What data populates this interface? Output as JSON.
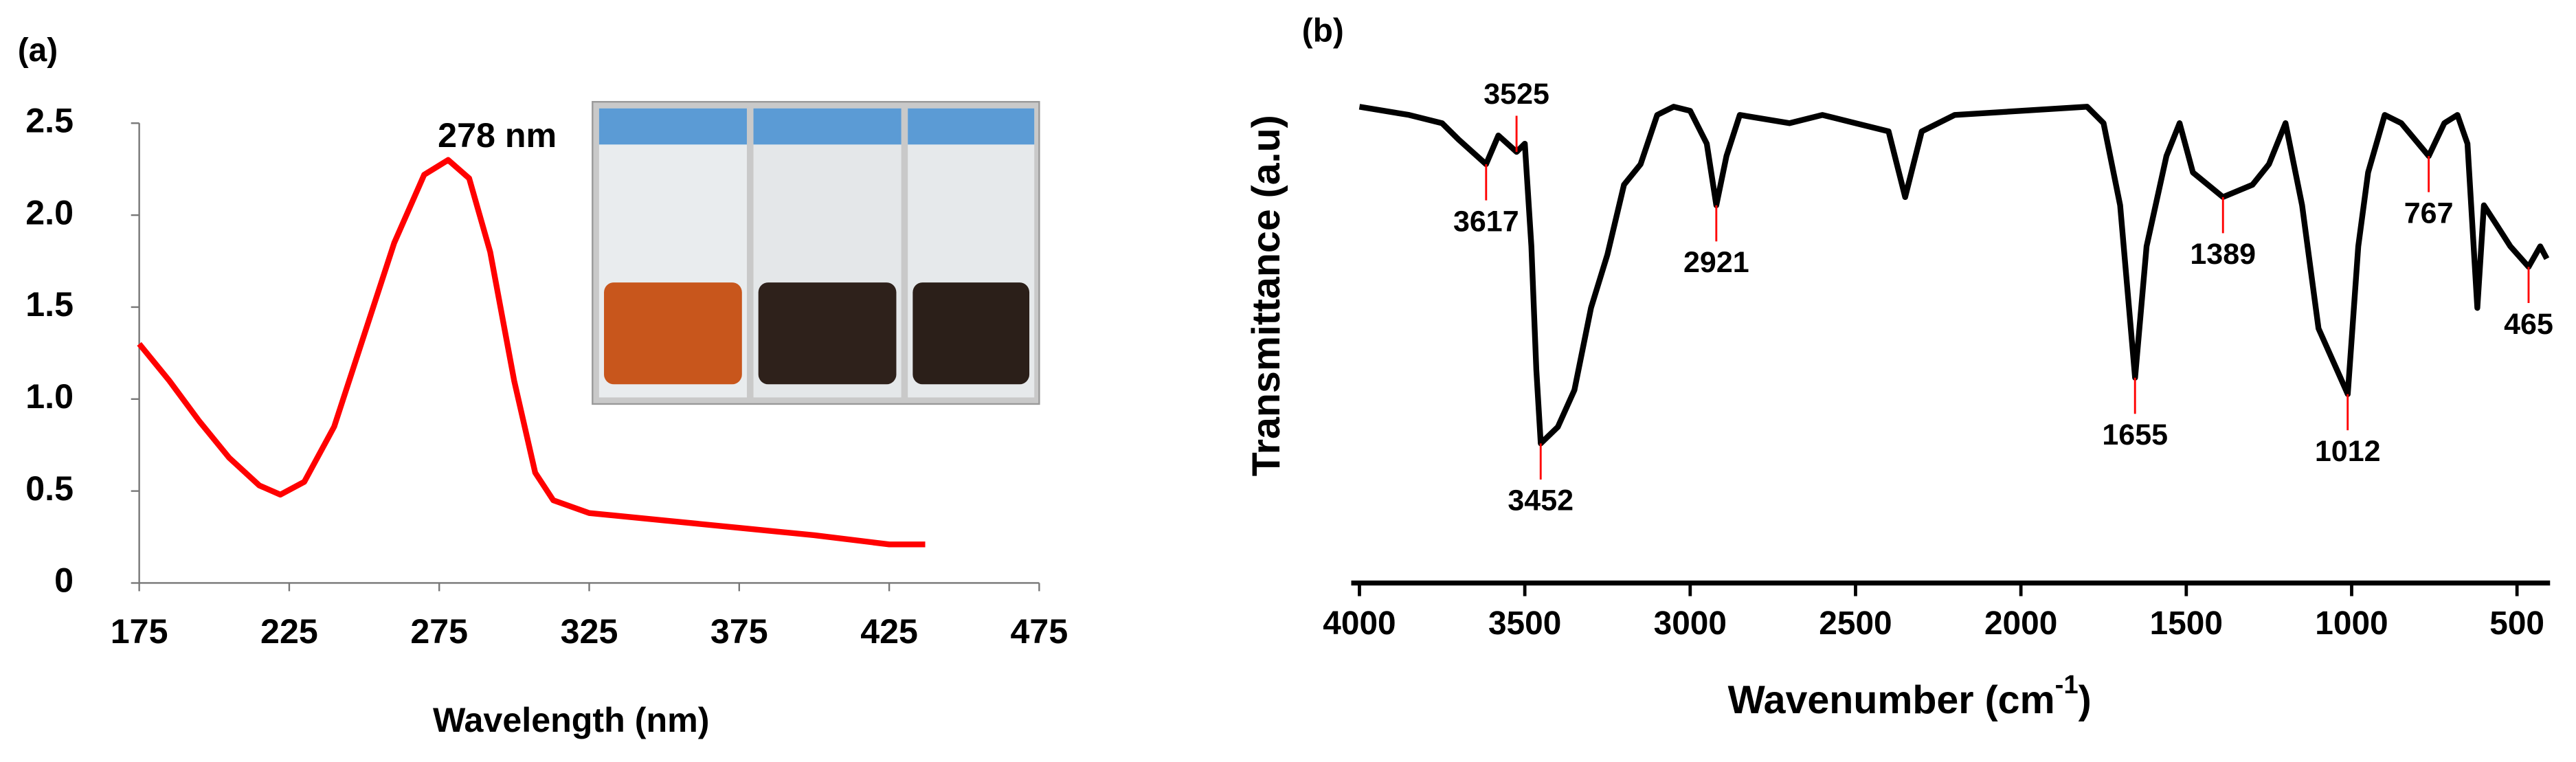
{
  "chart_data": [
    {
      "type": "line",
      "panel": "(a)",
      "xlabel": "Wavelength (nm)",
      "annotation": "278 nm",
      "x": [
        175,
        185,
        195,
        205,
        215,
        222,
        230,
        240,
        250,
        260,
        270,
        278,
        285,
        292,
        300,
        307,
        313,
        325,
        350,
        375,
        400,
        425,
        437
      ],
      "series": [
        {
          "color": "#ff0000",
          "values": [
            1.3,
            1.1,
            0.88,
            0.68,
            0.53,
            0.48,
            0.55,
            0.85,
            1.35,
            1.85,
            2.22,
            2.3,
            2.2,
            1.8,
            1.1,
            0.6,
            0.45,
            0.38,
            0.34,
            0.3,
            0.26,
            0.21,
            0.21
          ]
        }
      ],
      "xlim": [
        175,
        475
      ],
      "xticks": [
        175,
        225,
        275,
        325,
        375,
        425,
        475
      ],
      "ylim": [
        0,
        2.5
      ],
      "yticks": [
        0,
        0.5,
        {
          "value": 1,
          "label": "1.0"
        },
        1.5,
        {
          "value": 2,
          "label": "2.0"
        },
        2.5
      ]
    },
    {
      "type": "line",
      "panel": "(b)",
      "xlabel": "Wavenumber (cm",
      "xlabel_sup": "-1",
      "xlabel_end": ")",
      "ylabel": "Transmittance (a.u)",
      "x": [
        4000,
        3850,
        3750,
        3700,
        3617,
        3580,
        3525,
        3500,
        3480,
        3465,
        3452,
        3400,
        3350,
        3300,
        3250,
        3200,
        3150,
        3100,
        3050,
        3000,
        2950,
        2921,
        2890,
        2850,
        2700,
        2600,
        2500,
        2400,
        2350,
        2300,
        2200,
        2000,
        1800,
        1750,
        1700,
        1655,
        1620,
        1560,
        1520,
        1480,
        1389,
        1300,
        1250,
        1200,
        1150,
        1100,
        1012,
        980,
        950,
        900,
        850,
        767,
        720,
        680,
        650,
        620,
        600,
        560,
        520,
        465,
        430,
        410
      ],
      "series": [
        {
          "color": "#000000",
          "values": [
            94,
            92,
            90,
            86,
            80,
            87,
            83,
            85,
            60,
            30,
            12,
            16,
            25,
            45,
            58,
            75,
            80,
            92,
            94,
            93,
            85,
            70,
            82,
            92,
            90,
            92,
            90,
            88,
            72,
            88,
            92,
            93,
            94,
            90,
            70,
            28,
            60,
            82,
            90,
            78,
            72,
            75,
            80,
            90,
            70,
            40,
            24,
            60,
            78,
            92,
            90,
            82,
            90,
            92,
            85,
            45,
            70,
            65,
            60,
            55,
            60,
            57
          ]
        }
      ],
      "peak_labels": [
        3617,
        3525,
        3452,
        2921,
        1655,
        1389,
        1012,
        767,
        465
      ],
      "xlim": [
        4000,
        400
      ],
      "xticks": [
        4000,
        3500,
        3000,
        2500,
        2000,
        1500,
        1000,
        500
      ],
      "ylim": [
        0,
        100
      ]
    }
  ]
}
